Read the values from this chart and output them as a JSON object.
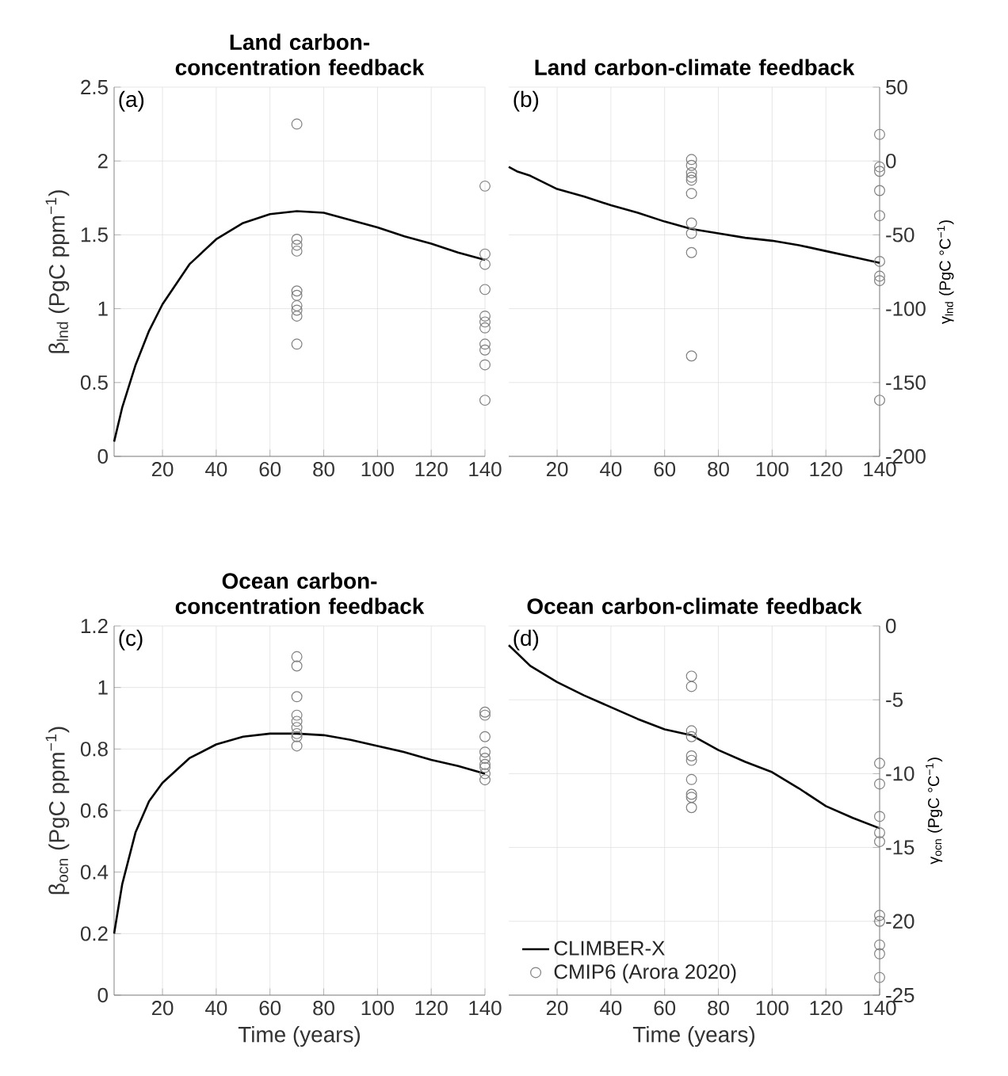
{
  "chart_data": [
    {
      "type": "line",
      "title": "Land carbon-concentration feedback",
      "ylabel": "β$_{lnd}$ (PgC ppm$^{−1}$)",
      "annotations": [
        "(a)"
      ],
      "xlim": [
        2,
        140
      ],
      "xticks": [
        20,
        40,
        60,
        80,
        100,
        120,
        140
      ],
      "ylim": [
        0,
        2.5
      ],
      "yticks": [
        0,
        0.5,
        1,
        1.5,
        2,
        2.5
      ],
      "grid": true,
      "series": [
        {
          "color": "#000000",
          "marker": "none",
          "x": [
            2,
            5,
            10,
            15,
            20,
            30,
            40,
            50,
            60,
            70,
            80,
            90,
            100,
            110,
            120,
            130,
            140
          ],
          "values": [
            0.1,
            0.33,
            0.62,
            0.85,
            1.03,
            1.3,
            1.47,
            1.58,
            1.64,
            1.66,
            1.65,
            1.6,
            1.55,
            1.49,
            1.44,
            1.38,
            1.33
          ]
        },
        {
          "type": "scatter",
          "color": "#808080",
          "marker": "circle",
          "x": [
            70,
            70,
            70,
            70,
            70,
            70,
            70,
            70,
            70,
            70,
            140,
            140,
            140,
            140,
            140,
            140,
            140,
            140,
            140,
            140,
            140
          ],
          "values": [
            2.25,
            1.47,
            1.43,
            1.39,
            1.12,
            1.09,
            1.02,
            0.99,
            0.95,
            0.76,
            1.83,
            1.37,
            1.3,
            1.13,
            0.95,
            0.91,
            0.87,
            0.76,
            0.72,
            0.62,
            0.38
          ]
        }
      ]
    },
    {
      "type": "line",
      "title": "Land carbon-climate feedback",
      "y2label": "γ$_{lnd}$ (PgC °C$^{−1}$)",
      "annotations": [
        "(b)"
      ],
      "xlim": [
        2,
        140
      ],
      "xticks": [
        20,
        40,
        60,
        80,
        100,
        120,
        140
      ],
      "y2lim": [
        -200,
        50
      ],
      "y2ticks": [
        -200,
        -150,
        -100,
        -50,
        0,
        50
      ],
      "grid": true,
      "series": [
        {
          "axis": "y2",
          "color": "#000000",
          "marker": "none",
          "x": [
            2,
            5,
            10,
            20,
            30,
            40,
            50,
            60,
            70,
            80,
            90,
            100,
            110,
            120,
            130,
            140
          ],
          "values": [
            -4,
            -7,
            -10,
            -19,
            -24,
            -30,
            -35,
            -41,
            -46,
            -49,
            -52,
            -54,
            -57,
            -61,
            -65,
            -69
          ]
        },
        {
          "type": "scatter",
          "axis": "y2",
          "color": "#808080",
          "marker": "circle",
          "x": [
            70,
            70,
            70,
            70,
            70,
            70,
            70,
            70,
            70,
            70,
            140,
            140,
            140,
            140,
            140,
            140,
            140,
            140,
            140
          ],
          "values": [
            1,
            -3,
            -8,
            -11,
            -13,
            -22,
            -42,
            -49,
            -62,
            -132,
            18,
            -4,
            -7,
            -20,
            -37,
            -68,
            -78,
            -81,
            -162
          ]
        }
      ]
    },
    {
      "type": "line",
      "title": "Ocean carbon-concentration feedback",
      "xlabel": "Time (years)",
      "ylabel": "β$_{ocn}$ (PgC ppm$^{−1}$)",
      "annotations": [
        "(c)"
      ],
      "xlim": [
        2,
        140
      ],
      "xticks": [
        20,
        40,
        60,
        80,
        100,
        120,
        140
      ],
      "ylim": [
        0,
        1.2
      ],
      "yticks": [
        0,
        0.2,
        0.4,
        0.6,
        0.8,
        1,
        1.2
      ],
      "grid": true,
      "series": [
        {
          "color": "#000000",
          "marker": "none",
          "x": [
            2,
            5,
            10,
            15,
            20,
            30,
            40,
            50,
            60,
            70,
            80,
            90,
            100,
            110,
            120,
            130,
            140
          ],
          "values": [
            0.2,
            0.36,
            0.53,
            0.63,
            0.69,
            0.77,
            0.815,
            0.84,
            0.85,
            0.85,
            0.845,
            0.83,
            0.81,
            0.79,
            0.765,
            0.745,
            0.72
          ]
        },
        {
          "type": "scatter",
          "color": "#808080",
          "marker": "circle",
          "x": [
            70,
            70,
            70,
            70,
            70,
            70,
            70,
            70,
            70,
            140,
            140,
            140,
            140,
            140,
            140,
            140,
            140,
            140
          ],
          "values": [
            1.1,
            1.07,
            0.97,
            0.91,
            0.89,
            0.87,
            0.85,
            0.84,
            0.81,
            0.92,
            0.91,
            0.84,
            0.79,
            0.77,
            0.75,
            0.74,
            0.72,
            0.7
          ]
        }
      ]
    },
    {
      "type": "line",
      "title": "Ocean carbon-climate feedback",
      "xlabel": "Time (years)",
      "y2label": "γ$_{ocn}$ (PgC °C$^{−1}$)",
      "annotations": [
        "(d)"
      ],
      "xlim": [
        2,
        140
      ],
      "xticks": [
        20,
        40,
        60,
        80,
        100,
        120,
        140
      ],
      "y2lim": [
        -25,
        0
      ],
      "y2ticks": [
        -25,
        -20,
        -15,
        -10,
        -5,
        0
      ],
      "grid": true,
      "legend": "bottom left",
      "series": [
        {
          "name": "CLIMBER-X",
          "axis": "y2",
          "color": "#000000",
          "marker": "none",
          "x": [
            2,
            10,
            20,
            30,
            40,
            50,
            60,
            70,
            80,
            90,
            100,
            110,
            120,
            130,
            140
          ],
          "values": [
            -1.3,
            -2.7,
            -3.8,
            -4.7,
            -5.5,
            -6.3,
            -7.0,
            -7.4,
            -8.4,
            -9.2,
            -9.9,
            -11.0,
            -12.2,
            -13.0,
            -13.7
          ]
        },
        {
          "name": "CMIP6 (Arora 2020)",
          "type": "scatter",
          "axis": "y2",
          "color": "#808080",
          "marker": "circle",
          "x": [
            70,
            70,
            70,
            70,
            70,
            70,
            70,
            70,
            70,
            70,
            140,
            140,
            140,
            140,
            140,
            140,
            140,
            140,
            140,
            140
          ],
          "values": [
            -3.4,
            -4.1,
            -7.1,
            -7.5,
            -8.8,
            -9.1,
            -10.4,
            -11.4,
            -11.6,
            -12.3,
            -9.3,
            -10.7,
            -12.9,
            -14.0,
            -14.6,
            -19.6,
            -20.0,
            -21.6,
            -22.2,
            -23.8
          ]
        }
      ]
    }
  ]
}
